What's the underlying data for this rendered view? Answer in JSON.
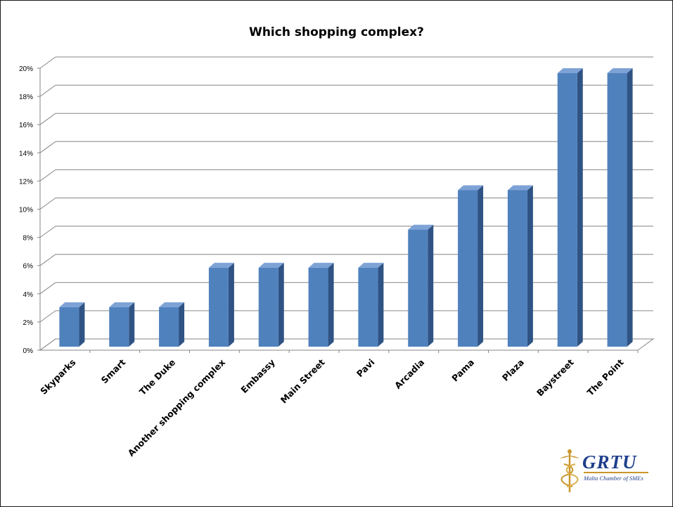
{
  "chart_data": {
    "type": "bar",
    "title": "Which shopping complex?",
    "categories": [
      "Skyparks",
      "Smart",
      "The Duke",
      "Another shopping complex",
      "Embassy",
      "Main Street",
      "Pavi",
      "Arcadia",
      "Pama",
      "Plaza",
      "Baystreet",
      "The Point"
    ],
    "values": [
      2.8,
      2.8,
      2.8,
      5.6,
      5.6,
      5.6,
      5.6,
      8.3,
      11.1,
      11.1,
      19.4,
      19.4
    ],
    "y_ticks": [
      "0%",
      "2%",
      "4%",
      "6%",
      "8%",
      "10%",
      "12%",
      "14%",
      "16%",
      "18%",
      "20%"
    ],
    "ylim": [
      0,
      20
    ],
    "xlabel": "",
    "ylabel": "",
    "grid": true,
    "style": "3d-column",
    "colors": {
      "front": "#4f81bd",
      "side": "#2f5384",
      "top": "#7da2d6",
      "grid": "#868686"
    }
  },
  "logo": {
    "name": "GRTU",
    "subtitle": "Malta Chamber of SMEs"
  }
}
